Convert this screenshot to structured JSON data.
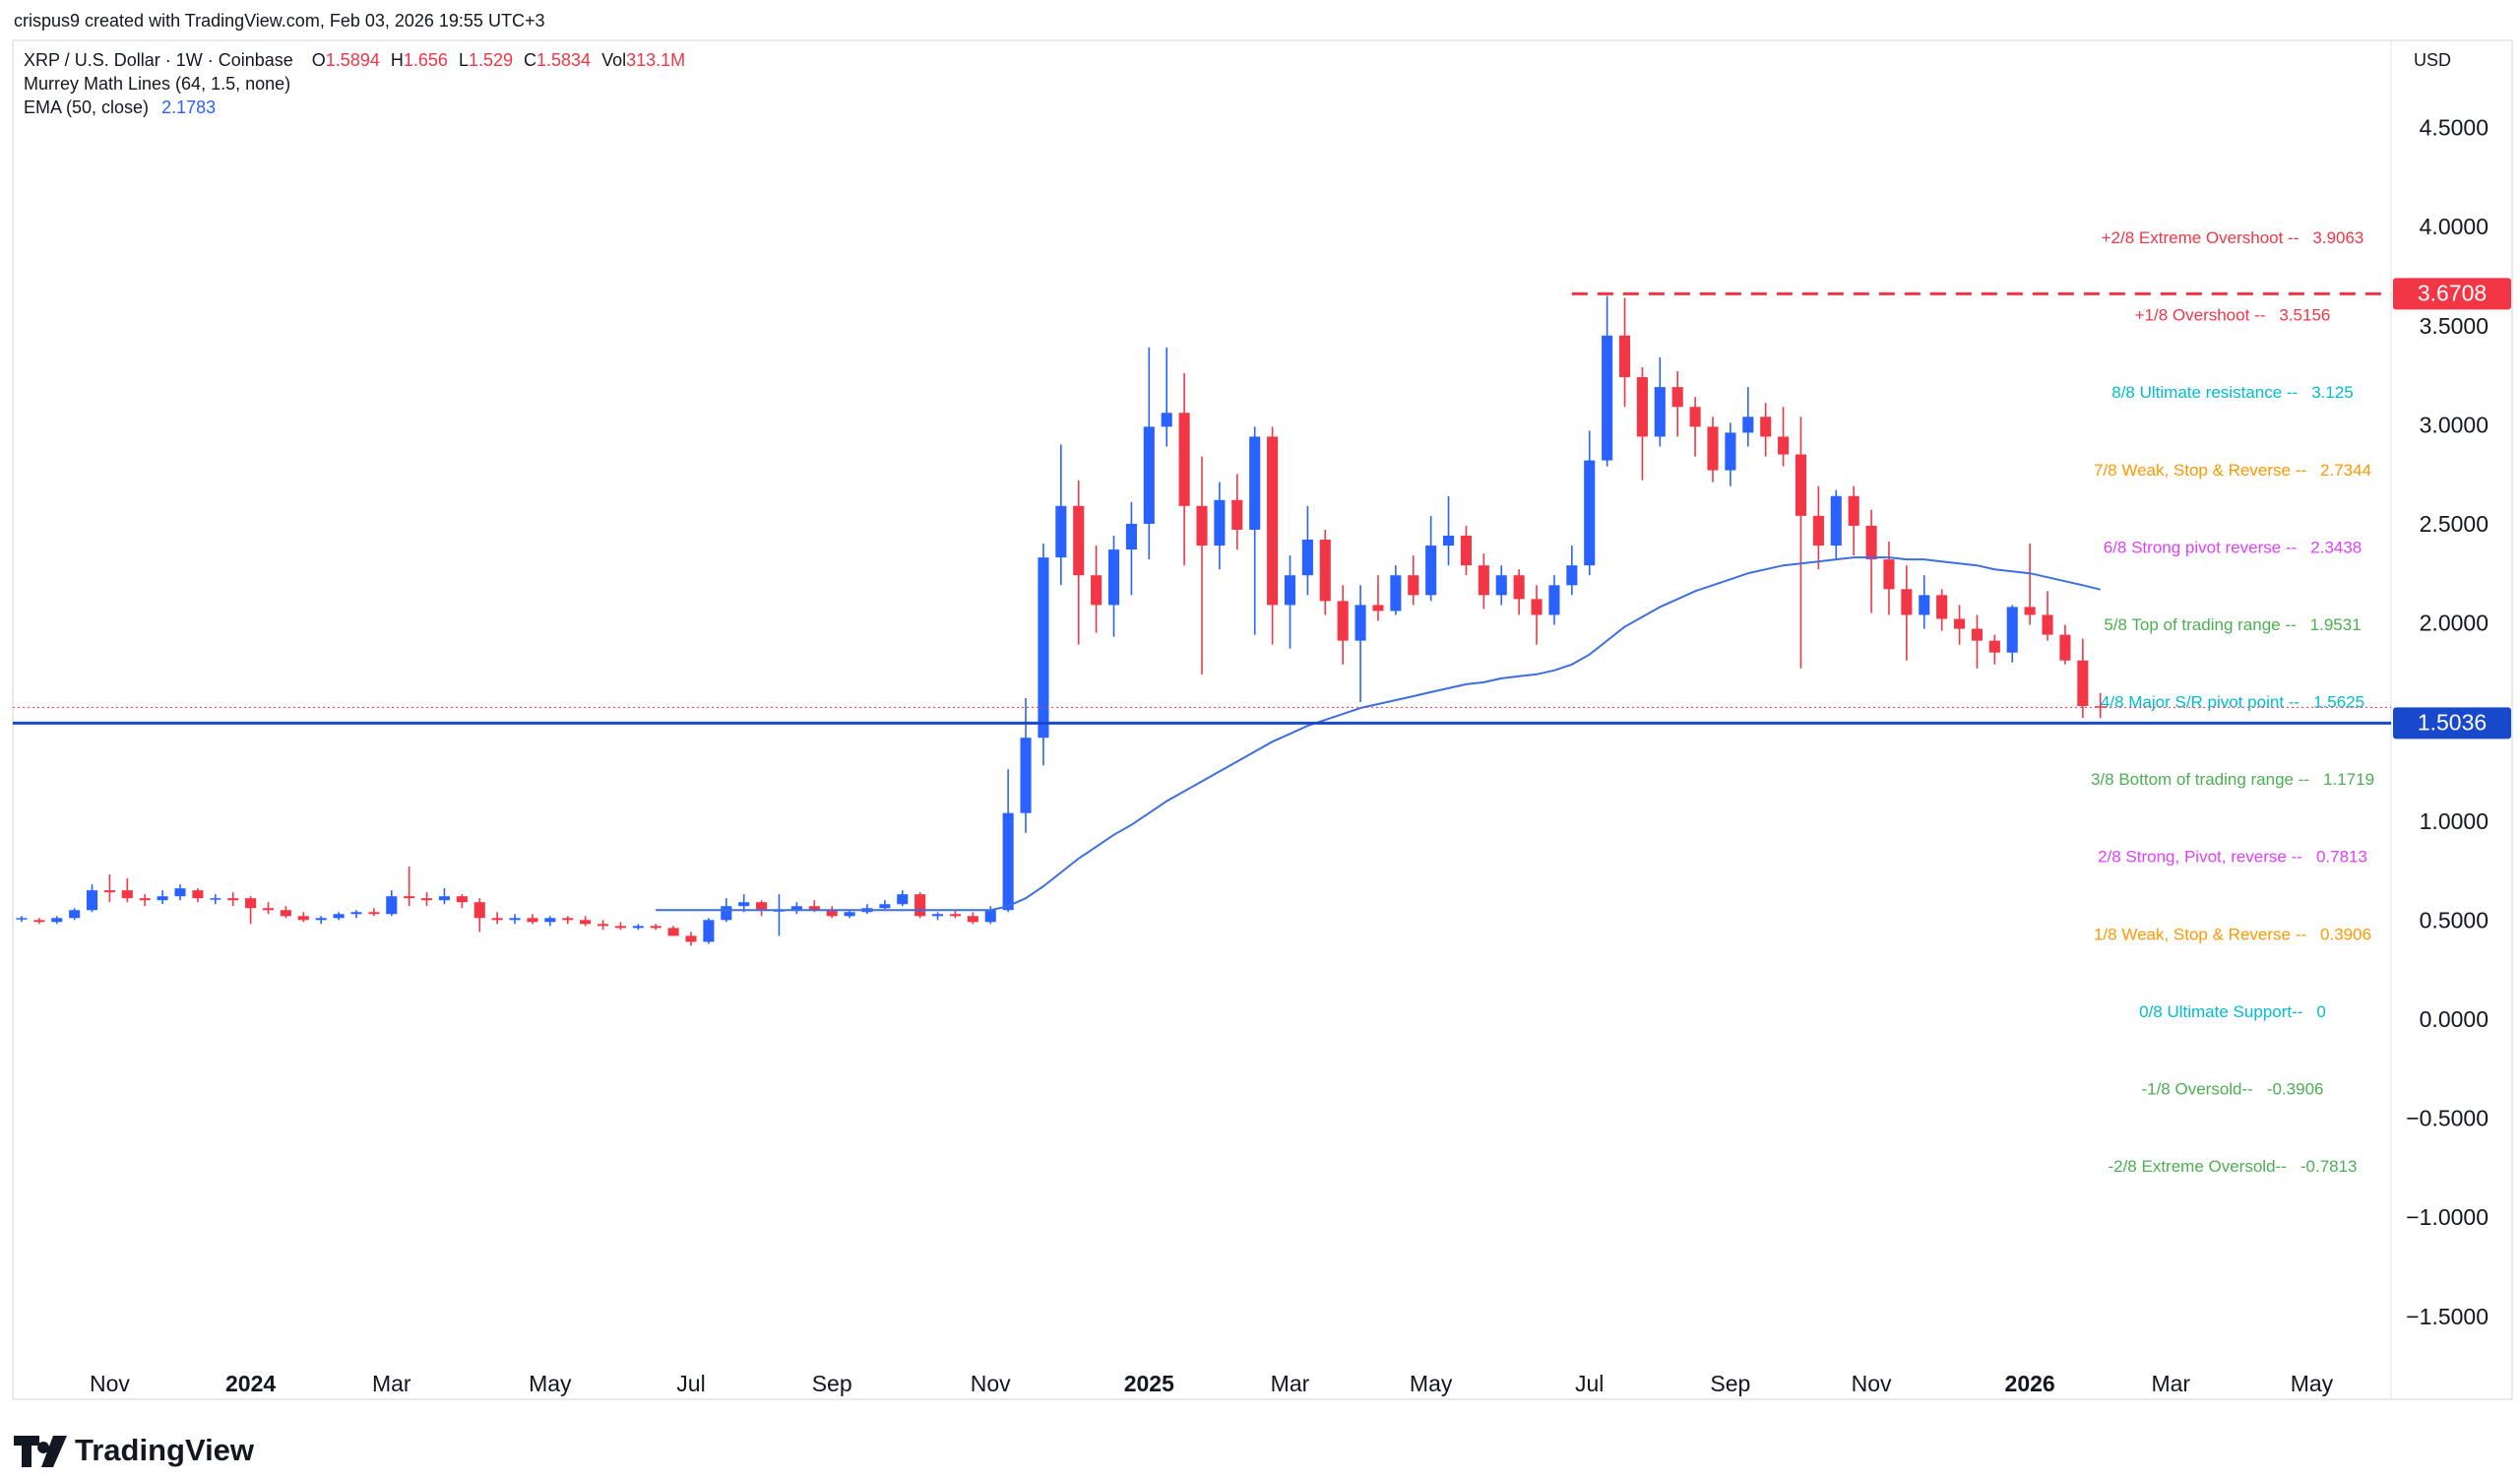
{
  "header": {
    "watermark": "crispus9 created with TradingView.com, Feb 03, 2026 19:55 UTC+3"
  },
  "chart_data": {
    "type": "candlestick",
    "title": "XRP / U.S. Dollar · 1W · Coinbase",
    "ohlc_keys": [
      "O",
      "H",
      "L",
      "C"
    ],
    "volume_key": "Vol",
    "volume": "313.1M",
    "murrey_title": "Murrey Math Lines (64, 1.5, none)",
    "currency": "USD",
    "up_color": "#2962ff",
    "down_color": "#f23645",
    "categories": [
      null,
      null,
      null,
      null,
      null,
      "Nov",
      null,
      null,
      null,
      null,
      null,
      null,
      null,
      "2024",
      null,
      null,
      null,
      null,
      null,
      null,
      null,
      "Mar",
      null,
      null,
      null,
      null,
      null,
      null,
      null,
      null,
      "May",
      null,
      null,
      null,
      null,
      null,
      null,
      null,
      "Jul",
      null,
      null,
      null,
      null,
      null,
      null,
      null,
      "Sep",
      null,
      null,
      null,
      null,
      null,
      null,
      null,
      null,
      "Nov",
      null,
      null,
      null,
      null,
      null,
      null,
      null,
      null,
      "2025",
      null,
      null,
      null,
      null,
      null,
      null,
      null,
      "Mar",
      null,
      null,
      null,
      null,
      null,
      null,
      null,
      "May",
      null,
      null,
      null,
      null,
      null,
      null,
      null,
      null,
      "Jul",
      null,
      null,
      null,
      null,
      null,
      null,
      null,
      "Sep",
      null,
      null,
      null,
      null,
      null,
      null,
      null,
      "Nov",
      null,
      null,
      null,
      null,
      null,
      null,
      null,
      null,
      "2026",
      null,
      null,
      null,
      null,
      null,
      null,
      null,
      "Mar",
      null,
      null,
      null,
      null,
      null,
      null,
      null,
      "May",
      null,
      null,
      null,
      null
    ],
    "open": [
      0.52,
      0.51,
      0.5,
      0.52,
      0.56,
      0.66,
      0.66,
      0.62,
      0.61,
      0.63,
      0.66,
      0.62,
      0.62,
      0.62,
      0.57,
      0.56,
      0.53,
      0.51,
      0.52,
      0.54,
      0.55,
      0.54,
      0.63,
      0.62,
      0.61,
      0.63,
      0.6,
      0.52,
      0.51,
      0.52,
      0.5,
      0.52,
      0.51,
      0.49,
      0.48,
      0.47,
      0.48,
      0.47,
      0.43,
      0.4,
      0.51,
      0.58,
      0.6,
      0.56,
      0.56,
      0.58,
      0.56,
      0.53,
      0.55,
      0.57,
      0.59,
      0.64,
      0.53,
      0.54,
      0.53,
      0.5,
      0.56,
      1.05,
      1.43,
      2.34,
      2.6,
      2.25,
      2.1,
      2.38,
      2.51,
      3.0,
      3.07,
      2.6,
      2.4,
      2.63,
      2.48,
      2.95,
      2.1,
      2.25,
      2.43,
      2.12,
      1.92,
      2.1,
      2.07,
      2.25,
      2.15,
      2.4,
      2.45,
      2.3,
      2.15,
      2.25,
      2.13,
      2.05,
      2.2,
      2.3,
      2.83,
      3.46,
      3.25,
      2.95,
      3.2,
      3.1,
      3.0,
      2.78,
      2.97,
      3.05,
      2.95,
      2.86,
      2.55,
      2.4,
      2.65,
      2.5,
      2.33,
      2.18,
      2.05,
      2.15,
      2.03,
      1.98,
      1.92,
      1.86,
      2.09,
      2.05,
      1.95,
      1.82,
      1.5894,
      null,
      null,
      null,
      null,
      null,
      null,
      null,
      null,
      null,
      null,
      null,
      null,
      null,
      null,
      null,
      null
    ],
    "high": [
      0.53,
      0.52,
      0.53,
      0.57,
      0.69,
      0.74,
      0.72,
      0.64,
      0.66,
      0.69,
      0.67,
      0.64,
      0.65,
      0.63,
      0.6,
      0.58,
      0.55,
      0.53,
      0.55,
      0.56,
      0.57,
      0.66,
      0.78,
      0.65,
      0.67,
      0.64,
      0.62,
      0.55,
      0.54,
      0.54,
      0.53,
      0.53,
      0.53,
      0.51,
      0.5,
      0.49,
      0.49,
      0.48,
      0.45,
      0.52,
      0.62,
      0.64,
      0.61,
      0.64,
      0.6,
      0.61,
      0.58,
      0.56,
      0.59,
      0.61,
      0.66,
      0.65,
      0.55,
      0.56,
      0.55,
      0.58,
      1.27,
      1.63,
      2.41,
      2.91,
      2.73,
      2.4,
      2.45,
      2.62,
      3.4,
      3.4,
      3.27,
      2.85,
      2.72,
      2.76,
      3.0,
      3.0,
      2.35,
      2.6,
      2.48,
      2.2,
      2.2,
      2.25,
      2.3,
      2.35,
      2.55,
      2.65,
      2.5,
      2.36,
      2.3,
      2.28,
      2.2,
      2.25,
      2.4,
      2.98,
      3.66,
      3.65,
      3.3,
      3.35,
      3.28,
      3.15,
      3.05,
      3.02,
      3.2,
      3.12,
      3.1,
      3.05,
      2.7,
      2.68,
      2.7,
      2.58,
      2.42,
      2.3,
      2.25,
      2.18,
      2.1,
      2.05,
      1.95,
      2.1,
      2.41,
      2.17,
      2.0,
      1.93,
      1.656,
      null,
      null,
      null,
      null,
      null,
      null,
      null,
      null,
      null,
      null,
      null,
      null,
      null,
      null,
      null,
      null
    ],
    "low": [
      0.5,
      0.49,
      0.49,
      0.51,
      0.55,
      0.6,
      0.6,
      0.58,
      0.59,
      0.61,
      0.6,
      0.59,
      0.58,
      0.49,
      0.54,
      0.52,
      0.5,
      0.49,
      0.51,
      0.52,
      0.53,
      0.53,
      0.58,
      0.58,
      0.59,
      0.57,
      0.45,
      0.49,
      0.49,
      0.49,
      0.48,
      0.49,
      0.48,
      0.46,
      0.46,
      0.46,
      0.46,
      0.43,
      0.38,
      0.39,
      0.5,
      0.55,
      0.53,
      0.43,
      0.54,
      0.55,
      0.52,
      0.52,
      0.54,
      0.56,
      0.58,
      0.52,
      0.51,
      0.52,
      0.49,
      0.49,
      0.55,
      0.95,
      1.29,
      2.2,
      1.9,
      1.96,
      1.94,
      2.15,
      2.33,
      2.9,
      2.3,
      1.75,
      2.28,
      2.38,
      1.95,
      1.9,
      1.88,
      2.15,
      2.05,
      1.8,
      1.61,
      2.02,
      2.05,
      2.1,
      2.12,
      2.3,
      2.25,
      2.08,
      2.1,
      2.05,
      1.9,
      2.0,
      2.15,
      2.25,
      2.8,
      3.1,
      2.73,
      2.9,
      2.95,
      2.85,
      2.72,
      2.7,
      2.9,
      2.85,
      2.8,
      1.78,
      2.28,
      2.33,
      2.35,
      2.06,
      2.05,
      1.82,
      1.98,
      1.97,
      1.9,
      1.78,
      1.8,
      1.81,
      2.0,
      1.92,
      1.8,
      1.53,
      1.529,
      null,
      null,
      null,
      null,
      null,
      null,
      null,
      null,
      null,
      null,
      null,
      null,
      null,
      null,
      null,
      null
    ],
    "close": [
      0.52,
      0.5,
      0.52,
      0.56,
      0.66,
      0.65,
      0.62,
      0.61,
      0.63,
      0.67,
      0.62,
      0.62,
      0.61,
      0.57,
      0.56,
      0.53,
      0.51,
      0.52,
      0.54,
      0.55,
      0.54,
      0.63,
      0.62,
      0.61,
      0.63,
      0.6,
      0.52,
      0.51,
      0.52,
      0.5,
      0.52,
      0.51,
      0.49,
      0.48,
      0.47,
      0.48,
      0.47,
      0.43,
      0.4,
      0.51,
      0.58,
      0.6,
      0.56,
      0.56,
      0.58,
      0.56,
      0.53,
      0.55,
      0.57,
      0.59,
      0.64,
      0.53,
      0.54,
      0.53,
      0.5,
      0.56,
      1.05,
      1.43,
      2.34,
      2.6,
      2.25,
      2.1,
      2.38,
      2.51,
      3.0,
      3.07,
      2.6,
      2.4,
      2.63,
      2.48,
      2.95,
      2.1,
      2.25,
      2.43,
      2.12,
      1.92,
      2.1,
      2.07,
      2.25,
      2.15,
      2.4,
      2.45,
      2.3,
      2.15,
      2.25,
      2.13,
      2.05,
      2.2,
      2.3,
      2.83,
      3.46,
      3.25,
      2.95,
      3.2,
      3.1,
      3.0,
      2.78,
      2.97,
      3.05,
      2.95,
      2.86,
      2.55,
      2.4,
      2.65,
      2.5,
      2.33,
      2.18,
      2.05,
      2.15,
      2.03,
      1.98,
      1.92,
      1.86,
      2.09,
      2.05,
      1.95,
      1.82,
      1.59,
      1.5834,
      null,
      null,
      null,
      null,
      null,
      null,
      null,
      null,
      null,
      null,
      null,
      null,
      null,
      null,
      null,
      null
    ],
    "ema": {
      "name": "EMA (50, close)",
      "color": "#3d6fe0",
      "values": [
        null,
        null,
        null,
        null,
        null,
        null,
        null,
        null,
        null,
        null,
        null,
        null,
        null,
        null,
        null,
        null,
        null,
        null,
        null,
        null,
        null,
        null,
        null,
        null,
        null,
        null,
        null,
        null,
        null,
        null,
        null,
        null,
        null,
        null,
        null,
        null,
        0.56,
        0.56,
        0.56,
        0.56,
        0.56,
        0.56,
        0.56,
        0.56,
        0.56,
        0.56,
        0.56,
        0.56,
        0.56,
        0.56,
        0.56,
        0.56,
        0.56,
        0.56,
        0.56,
        0.56,
        0.58,
        0.62,
        0.68,
        0.75,
        0.82,
        0.88,
        0.94,
        0.99,
        1.05,
        1.11,
        1.16,
        1.21,
        1.26,
        1.31,
        1.36,
        1.41,
        1.45,
        1.49,
        1.52,
        1.55,
        1.58,
        1.6,
        1.62,
        1.64,
        1.66,
        1.68,
        1.7,
        1.71,
        1.73,
        1.74,
        1.75,
        1.77,
        1.8,
        1.85,
        1.92,
        1.99,
        2.04,
        2.09,
        2.13,
        2.17,
        2.2,
        2.23,
        2.26,
        2.28,
        2.3,
        2.31,
        2.32,
        2.33,
        2.34,
        2.34,
        2.34,
        2.33,
        2.33,
        2.32,
        2.31,
        2.3,
        2.28,
        2.27,
        2.26,
        2.24,
        2.22,
        2.2,
        2.1783,
        null,
        null,
        null,
        null,
        null,
        null,
        null,
        null,
        null,
        null,
        null,
        null,
        null,
        null,
        null,
        null
      ]
    },
    "murrey_lines": [
      {
        "label": "+2/8 Extreme Overshoot --",
        "value": 3.9063,
        "color": "#f23645"
      },
      {
        "label": "+1/8 Overshoot --",
        "value": 3.5156,
        "color": "#f23645"
      },
      {
        "label": "8/8 Ultimate resistance --",
        "value": 3.125,
        "color": "#00bcd4"
      },
      {
        "label": "7/8 Weak, Stop & Reverse --",
        "value": 2.7344,
        "color": "#ff9800"
      },
      {
        "label": "6/8 Strong pivot reverse --",
        "value": 2.3438,
        "color": "#e040fb"
      },
      {
        "label": "5/8 Top of trading range --",
        "value": 1.9531,
        "color": "#4caf50"
      },
      {
        "label": "4/8 Major S/R pivot point --",
        "value": 1.5625,
        "color": "#00bcd4"
      },
      {
        "label": "3/8 Bottom of trading range --",
        "value": 1.1719,
        "color": "#4caf50"
      },
      {
        "label": "2/8 Strong, Pivot, reverse --",
        "value": 0.7813,
        "color": "#e040fb"
      },
      {
        "label": "1/8 Weak, Stop & Reverse --",
        "value": 0.3906,
        "color": "#ff9800"
      },
      {
        "label": "0/8 Ultimate Support--",
        "value": 0,
        "color": "#00bcd4"
      },
      {
        "label": "-1/8 Oversold--",
        "value": -0.3906,
        "color": "#4caf50"
      },
      {
        "label": "-2/8 Extreme Oversold--",
        "value": -0.7813,
        "color": "#4caf50"
      }
    ],
    "price_lines": [
      {
        "value": 3.6708,
        "color": "#f23645",
        "style": "dashed"
      },
      {
        "value": 1.5036,
        "color": "#1848cc",
        "style": "solid"
      }
    ],
    "ylim": [
      -1.725,
      4.95
    ],
    "yticks": [
      {
        "value": 4.5,
        "label": "4.5000"
      },
      {
        "value": 4,
        "label": "4.0000"
      },
      {
        "value": 3.5,
        "label": "3.5000"
      },
      {
        "value": 3,
        "label": "3.0000"
      },
      {
        "value": 2.5,
        "label": "2.5000"
      },
      {
        "value": 2,
        "label": "2.0000"
      },
      {
        "value": 1.5,
        "label": "1.5000"
      },
      {
        "value": 1,
        "label": "1.0000"
      },
      {
        "value": 0.5,
        "label": "0.5000"
      },
      {
        "value": 0,
        "label": "0.0000"
      },
      {
        "value": -0.5,
        "label": "−0.5000"
      },
      {
        "value": -1,
        "label": "−1.0000"
      },
      {
        "value": -1.5,
        "label": "−1.5000"
      }
    ],
    "grid": false
  },
  "footer": {
    "brand": "TradingView"
  }
}
